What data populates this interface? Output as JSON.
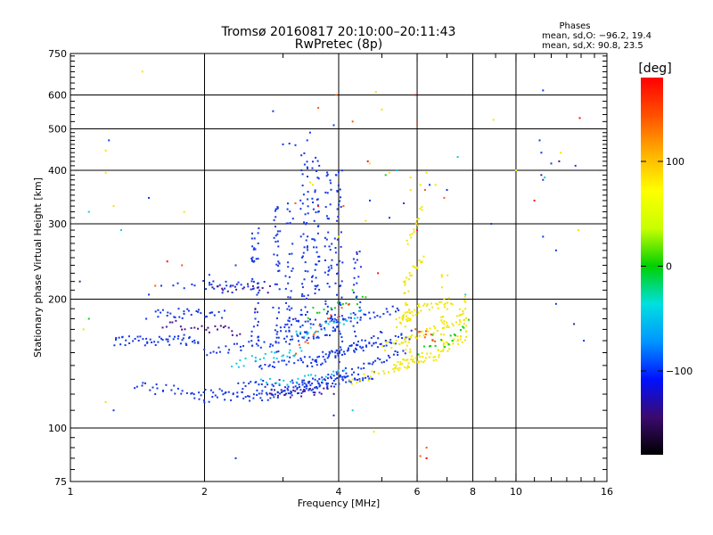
{
  "header": {
    "title_line1": "Tromsø 20160817 20:10:00–20:11:43",
    "title_line2": "RwPretec (8p)",
    "phases_title": "Phases",
    "phases_O": "mean, sd,O: −96.2, 19.4",
    "phases_X": "mean, sd,X:  90.8, 23.5"
  },
  "chart_data": {
    "type": "scatter",
    "xlabel": "Frequency [MHz]",
    "ylabel": "Stationary phase Virtual Height [km]",
    "xscale": "log",
    "yscale": "log",
    "xlim": [
      1,
      16
    ],
    "ylim": [
      75,
      750
    ],
    "xticks": [
      1,
      2,
      4,
      6,
      8,
      10,
      16
    ],
    "xtick_labels": [
      "1",
      "2",
      "4",
      "6",
      "8",
      "10",
      "16"
    ],
    "yticks": [
      75,
      100,
      200,
      300,
      400,
      500,
      600,
      750
    ],
    "ytick_labels": [
      "75",
      "100",
      "200",
      "300",
      "400",
      "500",
      "600",
      "750"
    ],
    "x_gridlines": [
      2,
      4,
      6,
      8,
      10
    ],
    "y_gridlines": [
      100,
      200,
      300,
      400,
      500,
      600
    ],
    "grid": true,
    "colorbar": {
      "label": "[deg]",
      "range": [
        -180,
        180
      ],
      "ticks": [
        100,
        0,
        -100
      ],
      "tick_labels": [
        "100",
        "0",
        "−100"
      ],
      "colors": [
        "#000000",
        "#3b0a6e",
        "#0010ff",
        "#0096ff",
        "#00e0e0",
        "#00d000",
        "#c8ff00",
        "#ffff00",
        "#ffb000",
        "#ff5000",
        "#ff0000"
      ]
    },
    "series": [
      {
        "phase": -96.2,
        "color": "#1437e6",
        "traces": [
          {
            "x": [
              1.25,
              1.95
            ],
            "y": [
              160,
              160
            ],
            "n": 50
          },
          {
            "x": [
              1.55,
              2.2
            ],
            "y": [
              185,
              185
            ],
            "n": 30
          },
          {
            "x": [
              1.4,
              2.7,
              4.2
            ],
            "y": [
              125,
              118,
              130
            ],
            "n": 90
          },
          {
            "x": [
              1.9,
              2.8,
              3.6
            ],
            "y": [
              117,
              120,
              124
            ],
            "n": 40
          },
          {
            "x": [
              2.4,
              3.2,
              4.0,
              4.8
            ],
            "y": [
              125,
              127,
              130,
              133
            ],
            "n": 70
          },
          {
            "x": [
              2.0,
              3.0,
              4.0
            ],
            "y": [
              150,
              160,
              170
            ],
            "n": 55
          },
          {
            "x": [
              2.6,
              3.5,
              4.6,
              5.8
            ],
            "y": [
              140,
              146,
              155,
              165
            ],
            "n": 75
          },
          {
            "x": [
              2.9,
              3.6,
              4.4,
              5.5
            ],
            "y": [
              172,
              176,
              182,
              190
            ],
            "n": 55
          },
          {
            "x": [
              3.3,
              4.5,
              5.6
            ],
            "y": [
              125,
              138,
              150
            ],
            "n": 40
          },
          {
            "x": [
              3.4,
              4.0,
              5.0
            ],
            "y": [
              140,
              150,
              165
            ],
            "n": 35
          },
          {
            "x": [
              1.7,
              2.2,
              2.7
            ],
            "y": [
              215,
              220,
              215
            ],
            "n": 18
          },
          {
            "x": [
              2.0,
              2.4
            ],
            "y": [
              212,
              212
            ],
            "n": 12
          }
        ],
        "columns": [
          {
            "x": 2.6,
            "y": [
              150,
              300
            ],
            "n": 40
          },
          {
            "x": 2.9,
            "y": [
              150,
              330
            ],
            "n": 40
          },
          {
            "x": 3.1,
            "y": [
              160,
              350
            ],
            "n": 35
          },
          {
            "x": 3.35,
            "y": [
              160,
              440
            ],
            "n": 55
          },
          {
            "x": 3.55,
            "y": [
              180,
              430
            ],
            "n": 45
          },
          {
            "x": 3.8,
            "y": [
              180,
              410
            ],
            "n": 40
          },
          {
            "x": 4.0,
            "y": [
              140,
              400
            ],
            "n": 50
          },
          {
            "x": 4.4,
            "y": [
              150,
              260
            ],
            "n": 25
          }
        ],
        "points": [
          [
            1.48,
            180
          ],
          [
            1.5,
            205
          ],
          [
            1.6,
            215
          ],
          [
            1.75,
            190
          ],
          [
            1.8,
            165
          ],
          [
            2.05,
            228
          ],
          [
            2.35,
            240
          ],
          [
            2.85,
            550
          ],
          [
            3.0,
            460
          ],
          [
            3.1,
            462
          ],
          [
            3.2,
            458
          ],
          [
            3.4,
            470
          ],
          [
            3.45,
            490
          ],
          [
            3.9,
            510
          ],
          [
            3.3,
            400
          ],
          [
            4.7,
            340
          ],
          [
            5.2,
            310
          ],
          [
            1.22,
            470
          ],
          [
            1.5,
            345
          ],
          [
            11.3,
            470
          ],
          [
            11.4,
            440
          ],
          [
            11.5,
            380
          ],
          [
            12.0,
            415
          ],
          [
            13.6,
            410
          ],
          [
            11.5,
            280
          ],
          [
            12.3,
            260
          ],
          [
            8.8,
            300
          ],
          [
            11.5,
            615
          ],
          [
            14.2,
            160
          ],
          [
            12.3,
            195
          ],
          [
            2.35,
            85
          ],
          [
            3.9,
            107
          ],
          [
            2.6,
            180
          ],
          [
            3.6,
            320
          ],
          [
            5.6,
            335
          ],
          [
            6.4,
            370
          ],
          [
            7.0,
            360
          ],
          [
            1.25,
            110
          ],
          [
            1.55,
            120
          ]
        ]
      },
      {
        "phase": 90.8,
        "color": "#f2e600",
        "traces": [
          {
            "x": [
              5.3,
              6.6,
              7.8
            ],
            "y": [
              138,
              148,
              165
            ],
            "n": 60
          },
          {
            "x": [
              5.0,
              6.2,
              7.6
            ],
            "y": [
              155,
              165,
              182
            ],
            "n": 40
          },
          {
            "x": [
              5.4,
              6.0,
              7.2
            ],
            "y": [
              175,
              190,
              200
            ],
            "n": 45
          },
          {
            "x": [
              4.2,
              5.3,
              6.1
            ],
            "y": [
              128,
              138,
              148
            ],
            "n": 30
          },
          {
            "x": [
              5.6,
              6.2
            ],
            "y": [
              220,
              250
            ],
            "n": 18
          },
          {
            "x": [
              5.7,
              6.2
            ],
            "y": [
              270,
              330
            ],
            "n": 15
          }
        ],
        "columns": [
          {
            "x": 5.7,
            "y": [
              150,
              220
            ],
            "n": 25
          },
          {
            "x": 6.9,
            "y": [
              150,
              230
            ],
            "n": 20
          },
          {
            "x": 7.6,
            "y": [
              160,
              210
            ],
            "n": 15
          }
        ],
        "points": [
          [
            4.85,
            610
          ],
          [
            5.0,
            555
          ],
          [
            5.8,
            385
          ],
          [
            6.1,
            370
          ],
          [
            6.3,
            395
          ],
          [
            4.7,
            415
          ],
          [
            5.2,
            395
          ],
          [
            5.8,
            360
          ],
          [
            6.6,
            370
          ],
          [
            4.6,
            305
          ],
          [
            4.0,
            280
          ],
          [
            4.8,
            98
          ],
          [
            8.9,
            525
          ],
          [
            10.0,
            400
          ],
          [
            1.45,
            680
          ],
          [
            1.07,
            170
          ],
          [
            1.2,
            115
          ],
          [
            1.2,
            445
          ],
          [
            1.2,
            395
          ],
          [
            1.25,
            330
          ],
          [
            1.8,
            320
          ],
          [
            13.8,
            290
          ],
          [
            12.6,
            440
          ],
          [
            3.5,
            370
          ],
          [
            3.45,
            375
          ]
        ]
      },
      {
        "phase": -20,
        "color": "#18c8e0",
        "traces": [
          {
            "x": [
              2.3,
              2.8,
              3.3
            ],
            "y": [
              140,
              148,
              152
            ],
            "n": 25
          },
          {
            "x": [
              3.2,
              3.8,
              4.5
            ],
            "y": [
              165,
              175,
              185
            ],
            "n": 25
          },
          {
            "x": [
              2.7,
              3.3,
              4.1
            ],
            "y": [
              128,
              130,
              134
            ],
            "n": 20
          }
        ],
        "points": [
          [
            7.4,
            430
          ],
          [
            5.4,
            400
          ],
          [
            4.3,
            110
          ],
          [
            6.5,
            160
          ],
          [
            7.7,
            205
          ],
          [
            11.6,
            385
          ],
          [
            1.3,
            290
          ],
          [
            1.1,
            320
          ]
        ]
      },
      {
        "phase": 0,
        "color": "#10d010",
        "traces": [
          {
            "x": [
              3.4,
              4.0,
              4.6
            ],
            "y": [
              185,
              195,
              200
            ],
            "n": 15
          },
          {
            "x": [
              6.1,
              7.0,
              7.8
            ],
            "y": [
              150,
              160,
              175
            ],
            "n": 15
          }
        ],
        "points": [
          [
            6.5,
            165
          ],
          [
            7.2,
            160
          ],
          [
            1.1,
            180
          ],
          [
            4.3,
            210
          ],
          [
            5.1,
            390
          ]
        ]
      },
      {
        "phase": 150,
        "color": "#ff5a00",
        "traces": [
          {
            "x": [
              3.2,
              3.6,
              4.2
            ],
            "y": [
              150,
              170,
              195
            ],
            "n": 12
          },
          {
            "x": [
              6.0,
              6.6
            ],
            "y": [
              170,
              160
            ],
            "n": 10
          }
        ],
        "points": [
          [
            6.0,
            515
          ],
          [
            6.25,
            360
          ],
          [
            3.95,
            600
          ],
          [
            3.6,
            560
          ],
          [
            6.1,
            86
          ],
          [
            6.3,
            85
          ],
          [
            4.1,
            330
          ],
          [
            1.55,
            215
          ],
          [
            1.78,
            240
          ],
          [
            3.2,
            335
          ],
          [
            6.9,
            345
          ],
          [
            6.3,
            90
          ],
          [
            4.3,
            520
          ]
        ]
      },
      {
        "phase": 170,
        "color": "#ff1010",
        "points": [
          [
            5.95,
            600
          ],
          [
            4.65,
            420
          ],
          [
            1.65,
            245
          ],
          [
            6.3,
            85
          ],
          [
            4.9,
            230
          ],
          [
            11.0,
            340
          ],
          [
            13.9,
            530
          ],
          [
            6.0,
            290
          ],
          [
            3.6,
            330
          ]
        ]
      },
      {
        "phase": -150,
        "color": "#4b168c",
        "traces": [
          {
            "x": [
              1.6,
              2.0,
              2.4
            ],
            "y": [
              175,
              172,
              168
            ],
            "n": 25
          },
          {
            "x": [
              2.1,
              2.5,
              2.8
            ],
            "y": [
              210,
              215,
              210
            ],
            "n": 15
          },
          {
            "x": [
              2.8,
              3.3,
              3.9
            ],
            "y": [
              120,
              121,
              123
            ],
            "n": 20
          }
        ],
        "points": [
          [
            12.5,
            420
          ],
          [
            11.4,
            390
          ],
          [
            1.05,
            220
          ],
          [
            13.5,
            175
          ],
          [
            2.2,
            210
          ],
          [
            2.6,
            190
          ],
          [
            4.4,
            255
          ],
          [
            3.2,
            180
          ]
        ]
      }
    ]
  }
}
